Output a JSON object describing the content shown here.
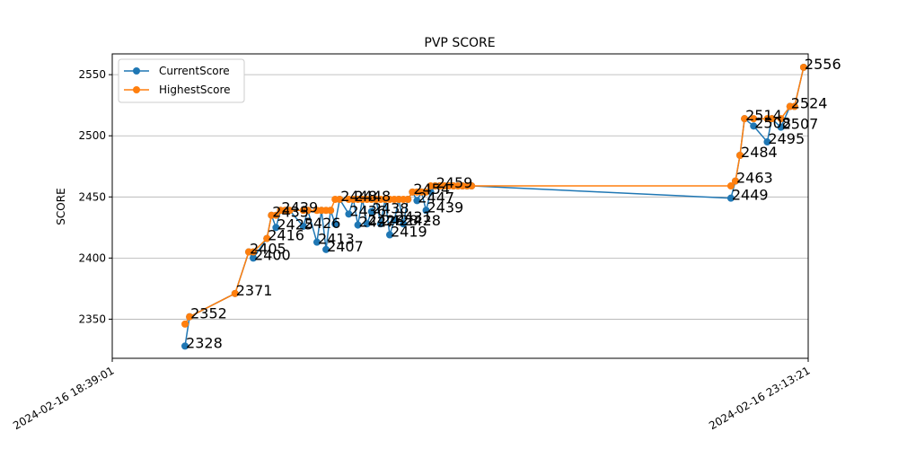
{
  "chart_data": {
    "type": "line",
    "title": "PVP SCORE",
    "xlabel": "",
    "ylabel": "SCORE",
    "x_tick_labels": [
      "2024-02-16 18:39:01",
      "2024-02-16 23:13:21"
    ],
    "y_ticks": [
      2350,
      2400,
      2450,
      2500,
      2550
    ],
    "ylim": [
      2318,
      2567
    ],
    "grid": "horizontal",
    "legend_position": "upper left",
    "colors": {
      "CurrentScore": "#1f77b4",
      "HighestScore": "#ff7f0e"
    },
    "series": [
      {
        "name": "CurrentScore",
        "x": [
          0.0,
          0.05,
          0.55,
          0.7,
          0.75,
          0.9,
          0.95,
          1.0,
          1.05,
          1.1,
          1.15,
          1.3,
          1.35,
          1.45,
          1.5,
          1.55,
          1.6,
          1.65,
          1.7,
          1.8,
          1.85,
          1.9,
          1.95,
          2.0,
          2.05,
          2.1,
          2.15,
          2.2,
          2.25,
          2.3,
          2.35,
          2.4,
          2.45,
          2.5,
          2.55,
          2.6,
          2.65,
          2.7,
          2.75,
          2.8,
          2.85,
          2.9,
          2.95,
          3.0,
          3.05,
          3.1,
          3.15,
          6.0,
          6.05,
          6.1,
          6.15,
          6.25,
          6.4,
          6.45,
          6.55,
          6.65,
          6.7,
          6.8
        ],
        "values": [
          2328,
          2352,
          2371,
          2405,
          2400,
          2416,
          2435,
          2425,
          2439,
          2439,
          2439,
          2426,
          2439,
          2413,
          2439,
          2407,
          2439,
          2428,
          2448,
          2436,
          2448,
          2427,
          2448,
          2428,
          2438,
          2448,
          2428,
          2448,
          2419,
          2431,
          2448,
          2428,
          2448,
          2454,
          2447,
          2454,
          2439,
          2454,
          2459,
          2459,
          2459,
          2459,
          2459,
          2459,
          2459,
          2459,
          2459,
          2449,
          2463,
          2484,
          2514,
          2508,
          2495,
          2514,
          2507,
          2524,
          2524,
          2556
        ],
        "labels": [
          {
            "text": "2328",
            "i": 0
          },
          {
            "text": "2352",
            "i": 1
          },
          {
            "text": "2371",
            "i": 2
          },
          {
            "text": "2405",
            "i": 3
          },
          {
            "text": "2400",
            "i": 4
          },
          {
            "text": "2416",
            "i": 5
          },
          {
            "text": "2435",
            "i": 6
          },
          {
            "text": "2425",
            "i": 7
          },
          {
            "text": "2439",
            "i": 8
          },
          {
            "text": "2426",
            "i": 11
          },
          {
            "text": "2413",
            "i": 13
          },
          {
            "text": "2407",
            "i": 15
          },
          {
            "text": "2448",
            "i": 18
          },
          {
            "text": "2436",
            "i": 19
          },
          {
            "text": "2448",
            "i": 20
          },
          {
            "text": "2427",
            "i": 21
          },
          {
            "text": "2428",
            "i": 23
          },
          {
            "text": "2438",
            "i": 24
          },
          {
            "text": "2428",
            "i": 26
          },
          {
            "text": "2419",
            "i": 28
          },
          {
            "text": "2431",
            "i": 29
          },
          {
            "text": "2428",
            "i": 31
          },
          {
            "text": "2454",
            "i": 33
          },
          {
            "text": "2447",
            "i": 34
          },
          {
            "text": "2439",
            "i": 36
          },
          {
            "text": "2459",
            "i": 38
          },
          {
            "text": "2449",
            "i": 47
          },
          {
            "text": "2463",
            "i": 48
          },
          {
            "text": "2484",
            "i": 49
          },
          {
            "text": "2514",
            "i": 50
          },
          {
            "text": "2508",
            "i": 51
          },
          {
            "text": "2495",
            "i": 52
          },
          {
            "text": "2507",
            "i": 54
          },
          {
            "text": "2524",
            "i": 55
          },
          {
            "text": "2556",
            "i": 57
          }
        ]
      },
      {
        "name": "HighestScore",
        "x": [
          0.0,
          0.05,
          0.55,
          0.7,
          0.75,
          0.9,
          0.95,
          1.0,
          1.05,
          1.1,
          1.15,
          1.3,
          1.35,
          1.45,
          1.5,
          1.55,
          1.6,
          1.65,
          1.7,
          1.8,
          1.85,
          1.9,
          1.95,
          2.0,
          2.05,
          2.1,
          2.15,
          2.2,
          2.25,
          2.3,
          2.35,
          2.4,
          2.45,
          2.5,
          2.55,
          2.6,
          2.65,
          2.7,
          2.75,
          2.8,
          2.85,
          2.9,
          2.95,
          3.0,
          3.05,
          3.1,
          3.15,
          6.0,
          6.05,
          6.1,
          6.15,
          6.25,
          6.4,
          6.45,
          6.55,
          6.65,
          6.7,
          6.8
        ],
        "values": [
          2346,
          2352,
          2371,
          2405,
          2405,
          2416,
          2435,
          2435,
          2439,
          2439,
          2439,
          2439,
          2439,
          2439,
          2439,
          2439,
          2439,
          2448,
          2448,
          2448,
          2448,
          2448,
          2448,
          2448,
          2448,
          2448,
          2448,
          2448,
          2448,
          2448,
          2448,
          2448,
          2448,
          2454,
          2454,
          2454,
          2454,
          2459,
          2459,
          2459,
          2459,
          2459,
          2459,
          2459,
          2459,
          2459,
          2459,
          2459,
          2463,
          2484,
          2514,
          2514,
          2514,
          2514,
          2514,
          2524,
          2524,
          2556
        ]
      }
    ]
  }
}
